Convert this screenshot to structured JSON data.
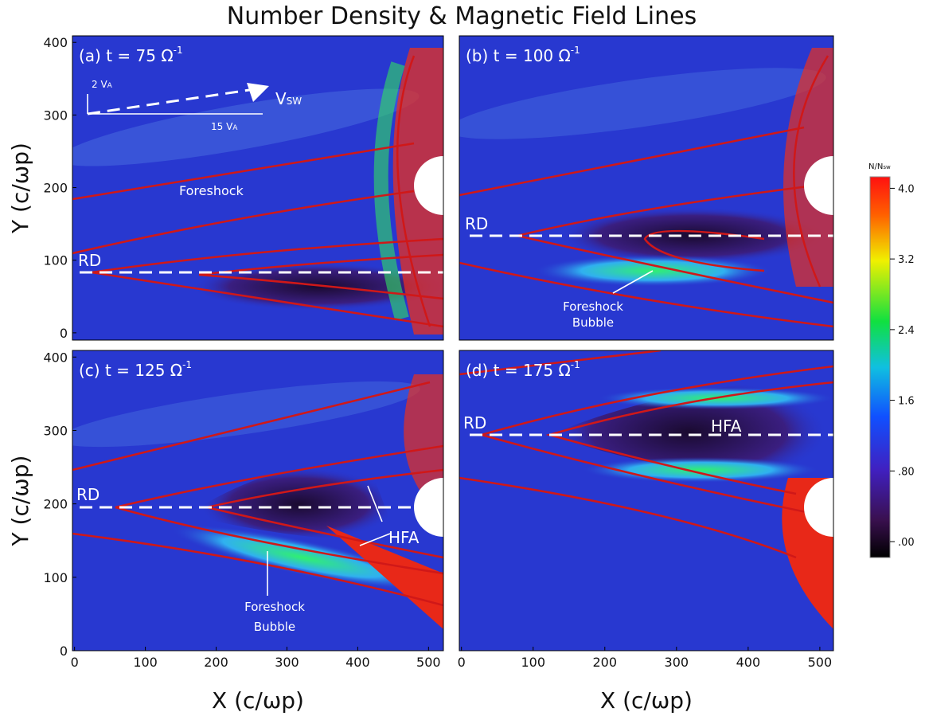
{
  "figure_title": "Number Density & Magnetic Field Lines",
  "chart_data": [
    {
      "type": "heatmap",
      "title": "(a) t = 75  Ω",
      "title_sup": "-1",
      "xlim": [
        -3,
        521
      ],
      "ylim": [
        -10,
        409
      ],
      "yticks": [
        0,
        100,
        200,
        300,
        400
      ],
      "y_label": "Y (c/ωp)",
      "annotations": [
        "RD",
        "Foreshock",
        "V",
        "SW",
        "2 V",
        "A",
        "15 V",
        "A"
      ]
    },
    {
      "type": "heatmap",
      "title": "(b) t = 100 Ω",
      "title_sup": "-1",
      "xlim": [
        -3,
        519
      ],
      "ylim": [
        -10,
        409
      ],
      "annotations": [
        "RD",
        "Foreshock",
        "Bubble"
      ]
    },
    {
      "type": "heatmap",
      "title": "(c) t = 125 Ω",
      "title_sup": "-1",
      "xlim": [
        -3,
        521
      ],
      "ylim": [
        0,
        409
      ],
      "xticks": [
        0,
        100,
        200,
        300,
        400,
        500
      ],
      "yticks": [
        0,
        100,
        200,
        300,
        400
      ],
      "y_label": "Y (c/ωp)",
      "x_label": "X (c/ωp)",
      "annotations": [
        "RD",
        "HFA",
        "Foreshock",
        "Bubble"
      ]
    },
    {
      "type": "heatmap",
      "title": "(d) t = 175 Ω",
      "title_sup": "-1",
      "xlim": [
        -3,
        519
      ],
      "ylim": [
        0,
        409
      ],
      "xticks": [
        0,
        100,
        200,
        300,
        400,
        500
      ],
      "x_label": "X (c/ωp)",
      "annotations": [
        "RD",
        "HFA"
      ]
    }
  ],
  "colorbar": {
    "label": "N/N",
    "label_sub": "sw",
    "clim": [
      -0.18,
      4.13
    ],
    "ticks": [
      {
        "value": 4.0,
        "label": "4.0"
      },
      {
        "value": 3.2,
        "label": "3.2"
      },
      {
        "value": 2.4,
        "label": "2.4"
      },
      {
        "value": 1.6,
        "label": "1.6"
      },
      {
        "value": 0.8,
        "label": ".80"
      },
      {
        "value": 0,
        "label": ".00"
      }
    ]
  }
}
